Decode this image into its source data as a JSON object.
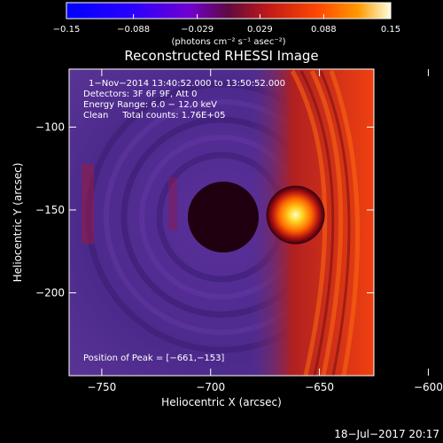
{
  "chart_data": {
    "type": "heatmap",
    "title": "Reconstructed RHESSI Image",
    "xlabel": "Heliocentric X (arcsec)",
    "ylabel": "Heliocentric Y (arcsec)",
    "xlim": [
      -765,
      -625
    ],
    "ylim": [
      -250,
      -65
    ],
    "xticks": [
      -750,
      -700,
      -650,
      -600
    ],
    "xtick_labels": [
      "−750",
      "−700",
      "−650",
      "−600"
    ],
    "yticks": [
      -100,
      -150,
      -200
    ],
    "ytick_labels": [
      "−100",
      "−150",
      "−200"
    ],
    "colorbar": {
      "min": -0.15,
      "max": 0.15,
      "ticks": [
        -0.15,
        -0.088,
        -0.029,
        0.029,
        0.088,
        0.15
      ],
      "tick_labels": [
        "−0.15",
        "−0.088",
        "−0.029",
        "0.029",
        "0.088",
        "0.15"
      ],
      "units_label": "(photons cm⁻² s⁻¹ asec⁻²)"
    },
    "annotations": [
      "1−Nov−2014 13:40:52.000 to 13:50:52.000",
      "Detectors: 3F 6F 9F, Att 0",
      "Energy Range: 6.0 − 12.0 keV",
      "Clean     Total counts: 1.76E+05"
    ],
    "peak": {
      "label": "Position of Peak = [−661,−153]",
      "x": -661,
      "y": -153
    }
  },
  "footer": {
    "timestamp": "18−Jul−2017 20:17"
  }
}
